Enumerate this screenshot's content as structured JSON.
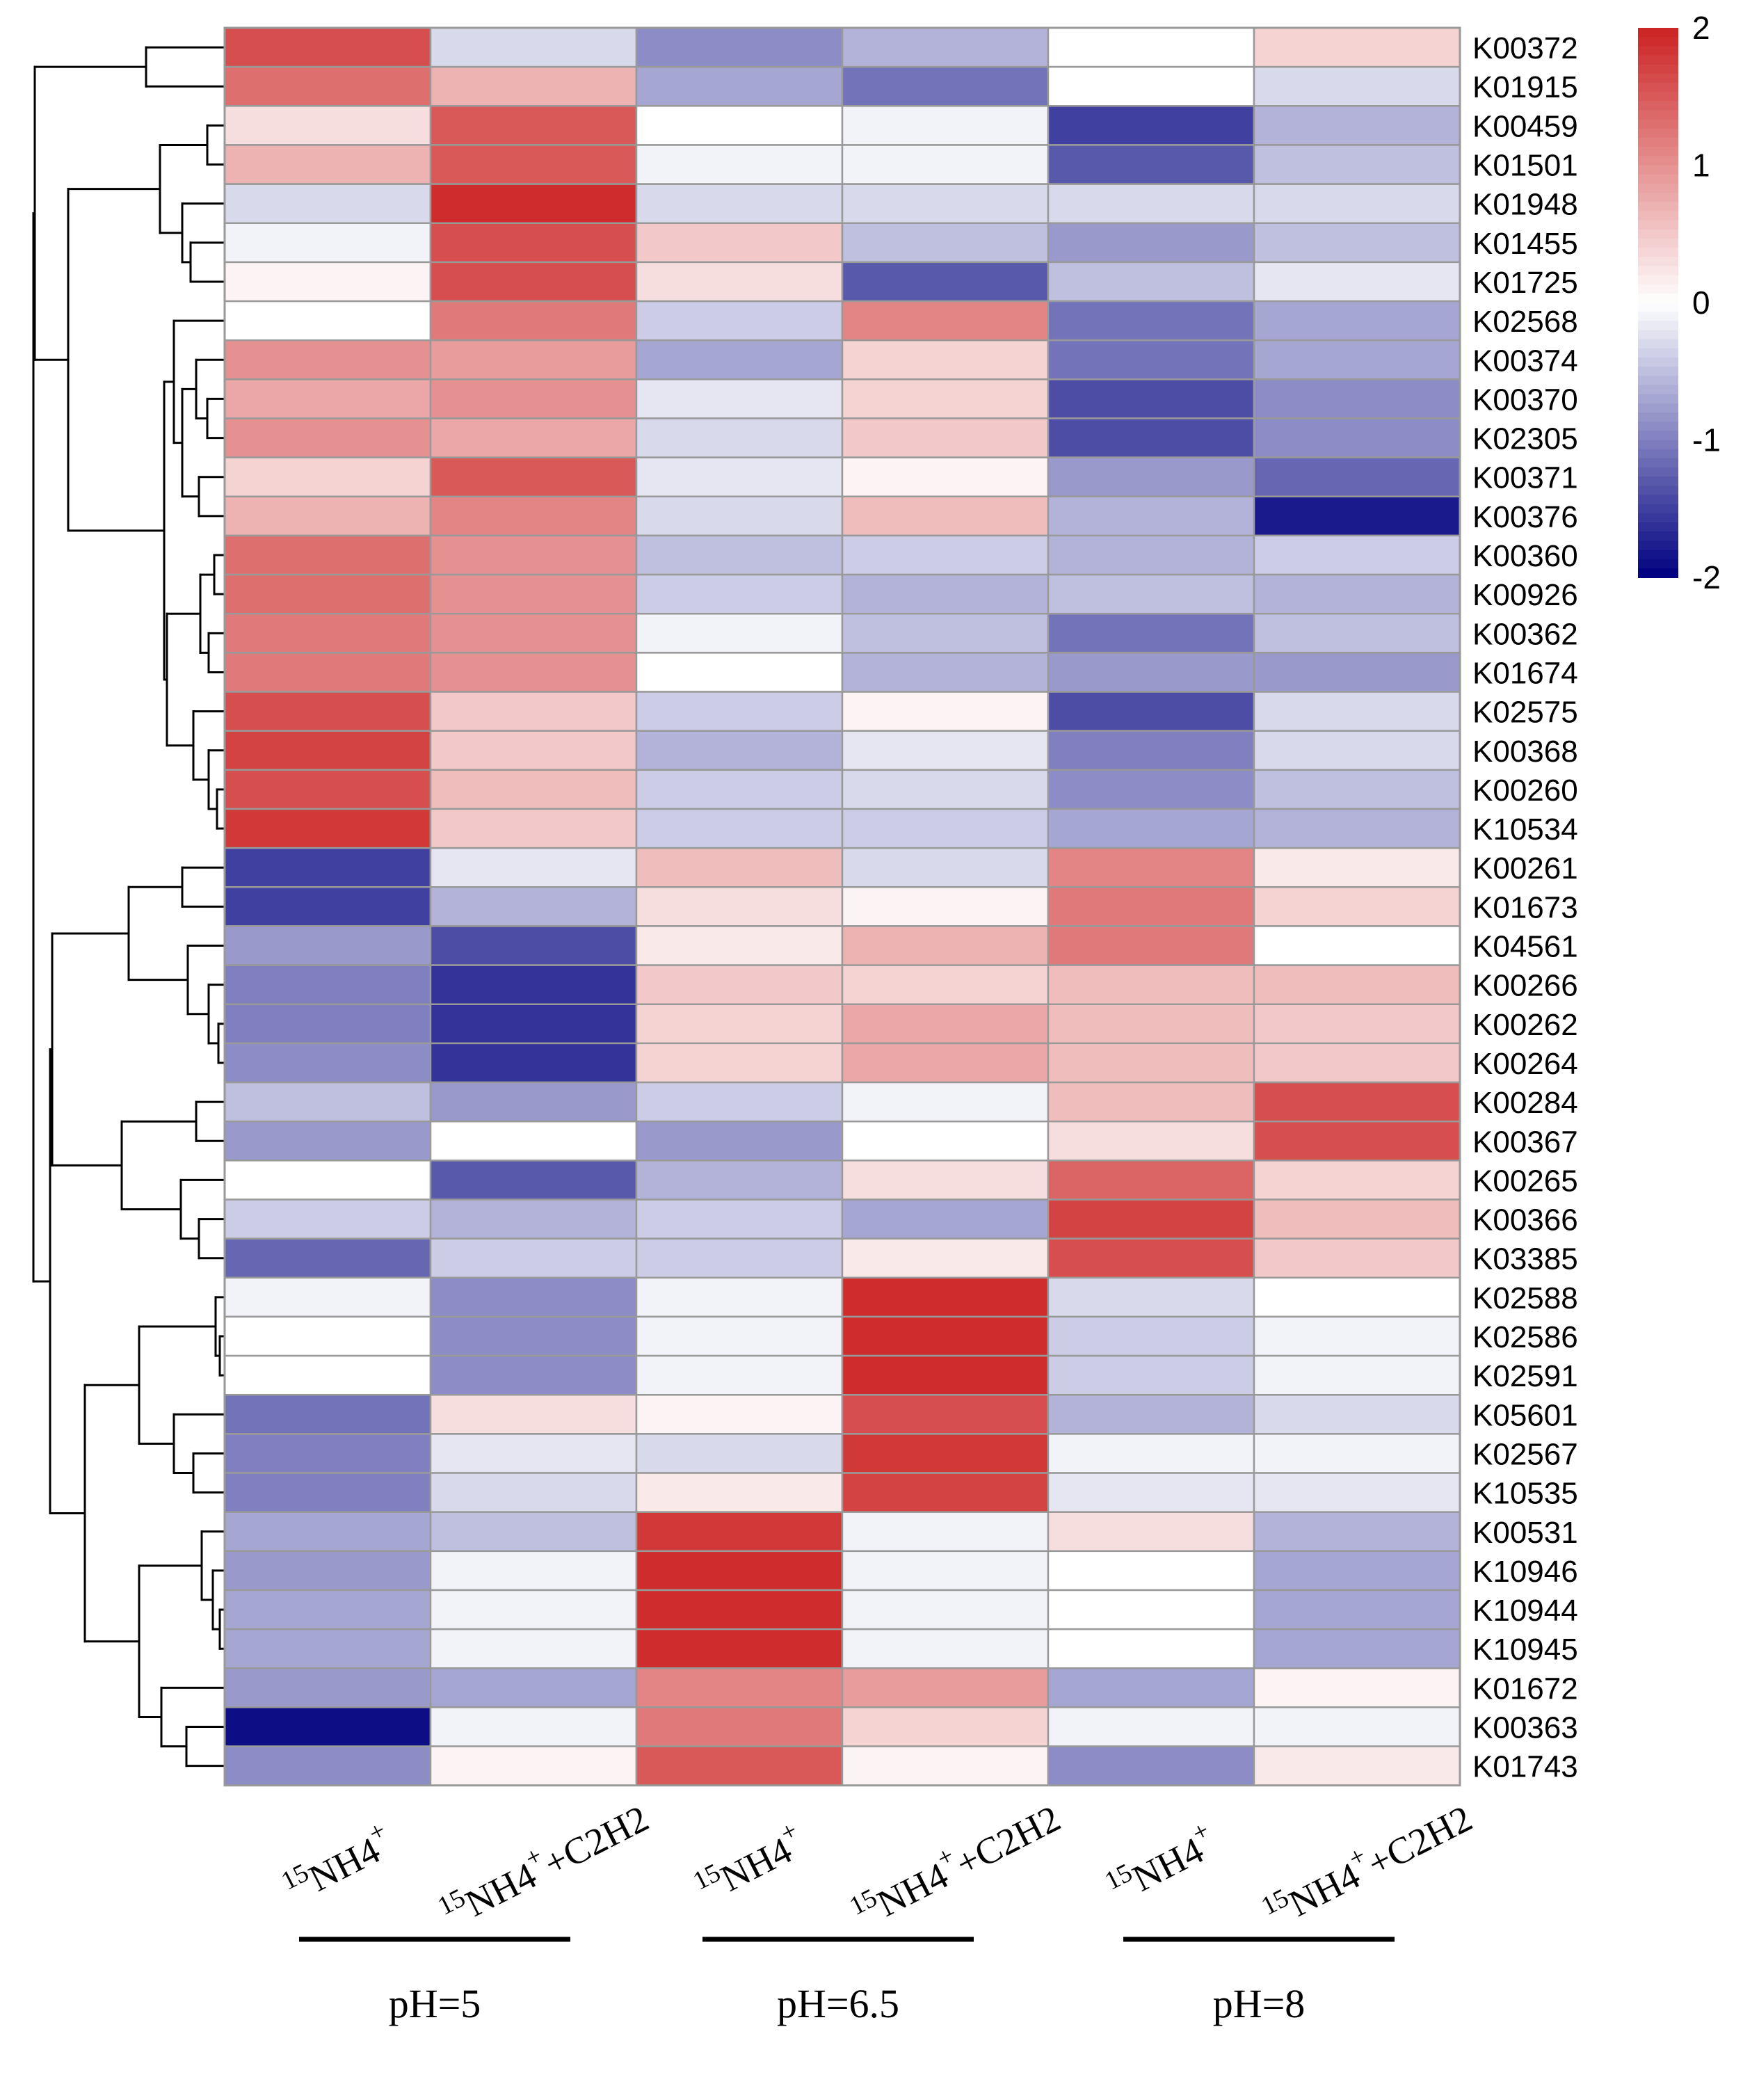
{
  "chart_data": {
    "type": "heatmap",
    "title": "",
    "columns": [
      {
        "isotope": "15",
        "species": "NH4",
        "charge": "+",
        "addition": ""
      },
      {
        "isotope": "15",
        "species": "NH4",
        "charge": "+",
        "addition": "+C2H2"
      },
      {
        "isotope": "15",
        "species": "NH4",
        "charge": "+",
        "addition": ""
      },
      {
        "isotope": "15",
        "species": "NH4",
        "charge": "+",
        "addition": "+C2H2"
      },
      {
        "isotope": "15",
        "species": "NH4",
        "charge": "+",
        "addition": ""
      },
      {
        "isotope": "15",
        "species": "NH4",
        "charge": "+",
        "addition": "+C2H2"
      }
    ],
    "groups": [
      {
        "label": "pH=5",
        "columns": [
          0,
          1
        ]
      },
      {
        "label": "pH=6.5",
        "columns": [
          2,
          3
        ]
      },
      {
        "label": "pH=8",
        "columns": [
          4,
          5
        ]
      }
    ],
    "rows": [
      "K00372",
      "K01915",
      "K00459",
      "K01501",
      "K01948",
      "K01455",
      "K01725",
      "K02568",
      "K00374",
      "K00370",
      "K02305",
      "K00371",
      "K00376",
      "K00360",
      "K00926",
      "K00362",
      "K01674",
      "K02575",
      "K00368",
      "K00260",
      "K10534",
      "K00261",
      "K01673",
      "K04561",
      "K00266",
      "K00262",
      "K00264",
      "K00284",
      "K00367",
      "K00265",
      "K00366",
      "K03385",
      "K02588",
      "K02586",
      "K02591",
      "K05601",
      "K02567",
      "K10535",
      "K00531",
      "K10946",
      "K10944",
      "K10945",
      "K01672",
      "K00363",
      "K01743"
    ],
    "values": [
      [
        1.6,
        -0.3,
        -0.9,
        -0.6,
        0.0,
        0.4
      ],
      [
        1.3,
        0.7,
        -0.7,
        -1.1,
        0.0,
        -0.3
      ],
      [
        0.3,
        1.5,
        0.0,
        -0.1,
        -1.5,
        -0.6
      ],
      [
        0.7,
        1.5,
        -0.1,
        -0.1,
        -1.3,
        -0.5
      ],
      [
        -0.3,
        1.9,
        -0.3,
        -0.3,
        -0.3,
        -0.3
      ],
      [
        -0.1,
        1.6,
        0.5,
        -0.5,
        -0.8,
        -0.5
      ],
      [
        0.1,
        1.6,
        0.3,
        -1.3,
        -0.5,
        -0.2
      ],
      [
        0.0,
        1.2,
        -0.4,
        1.1,
        -1.1,
        -0.7
      ],
      [
        1.0,
        0.9,
        -0.7,
        0.4,
        -1.1,
        -0.7
      ],
      [
        0.8,
        1.0,
        -0.2,
        0.4,
        -1.4,
        -0.9
      ],
      [
        1.0,
        0.8,
        -0.3,
        0.5,
        -1.4,
        -0.9
      ],
      [
        0.4,
        1.5,
        -0.2,
        0.1,
        -0.8,
        -1.2
      ],
      [
        0.7,
        1.1,
        -0.3,
        0.6,
        -0.6,
        -1.8
      ],
      [
        1.3,
        1.0,
        -0.5,
        -0.4,
        -0.6,
        -0.4
      ],
      [
        1.3,
        1.0,
        -0.4,
        -0.6,
        -0.5,
        -0.6
      ],
      [
        1.2,
        1.0,
        -0.1,
        -0.5,
        -1.1,
        -0.5
      ],
      [
        1.2,
        1.0,
        0.0,
        -0.6,
        -0.8,
        -0.8
      ],
      [
        1.6,
        0.5,
        -0.4,
        0.1,
        -1.4,
        -0.3
      ],
      [
        1.7,
        0.5,
        -0.6,
        -0.2,
        -1.0,
        -0.3
      ],
      [
        1.6,
        0.6,
        -0.4,
        -0.3,
        -0.9,
        -0.5
      ],
      [
        1.8,
        0.5,
        -0.4,
        -0.4,
        -0.7,
        -0.6
      ],
      [
        -1.5,
        -0.2,
        0.6,
        -0.3,
        1.1,
        0.2
      ],
      [
        -1.5,
        -0.6,
        0.3,
        0.1,
        1.2,
        0.4
      ],
      [
        -0.8,
        -1.4,
        0.2,
        0.7,
        1.2,
        0.0
      ],
      [
        -1.0,
        -1.6,
        0.5,
        0.4,
        0.6,
        0.6
      ],
      [
        -1.0,
        -1.6,
        0.4,
        0.8,
        0.6,
        0.5
      ],
      [
        -0.9,
        -1.6,
        0.4,
        0.8,
        0.6,
        0.5
      ],
      [
        -0.5,
        -0.8,
        -0.4,
        -0.1,
        0.6,
        1.6
      ],
      [
        -0.8,
        0.0,
        -0.8,
        0.0,
        0.3,
        1.6
      ],
      [
        0.0,
        -1.3,
        -0.6,
        0.3,
        1.4,
        0.4
      ],
      [
        -0.4,
        -0.6,
        -0.4,
        -0.7,
        1.7,
        0.6
      ],
      [
        -1.2,
        -0.4,
        -0.4,
        0.2,
        1.6,
        0.5
      ],
      [
        -0.1,
        -0.9,
        -0.1,
        1.9,
        -0.3,
        0.0
      ],
      [
        0.0,
        -0.9,
        -0.1,
        1.9,
        -0.4,
        -0.1
      ],
      [
        0.0,
        -0.9,
        -0.1,
        1.9,
        -0.4,
        -0.1
      ],
      [
        -1.1,
        0.3,
        0.1,
        1.6,
        -0.6,
        -0.3
      ],
      [
        -1.0,
        -0.2,
        -0.3,
        1.8,
        -0.1,
        -0.1
      ],
      [
        -1.0,
        -0.3,
        0.2,
        1.7,
        -0.2,
        -0.2
      ],
      [
        -0.7,
        -0.5,
        1.8,
        -0.1,
        0.3,
        -0.6
      ],
      [
        -0.8,
        -0.1,
        1.9,
        -0.1,
        0.0,
        -0.7
      ],
      [
        -0.7,
        -0.1,
        1.9,
        -0.1,
        0.0,
        -0.7
      ],
      [
        -0.7,
        -0.1,
        1.9,
        -0.1,
        0.0,
        -0.7
      ],
      [
        -0.8,
        -0.7,
        1.1,
        0.9,
        -0.7,
        0.1
      ],
      [
        -1.9,
        -0.1,
        1.2,
        0.4,
        -0.1,
        -0.1
      ],
      [
        -0.9,
        0.1,
        1.5,
        0.1,
        -0.9,
        0.2
      ]
    ],
    "color_scale": {
      "min": -2,
      "max": 2,
      "colors": {
        "low": "#000080",
        "mid": "#ffffff",
        "high": "#cc2222"
      },
      "ticks": [
        "2",
        "1",
        "0",
        "-1",
        "-2"
      ],
      "tick_values": [
        2,
        1,
        0,
        -1,
        -2
      ]
    },
    "dendrogram": "rows clustered (hierarchical)",
    "grid_color": "#999999"
  }
}
